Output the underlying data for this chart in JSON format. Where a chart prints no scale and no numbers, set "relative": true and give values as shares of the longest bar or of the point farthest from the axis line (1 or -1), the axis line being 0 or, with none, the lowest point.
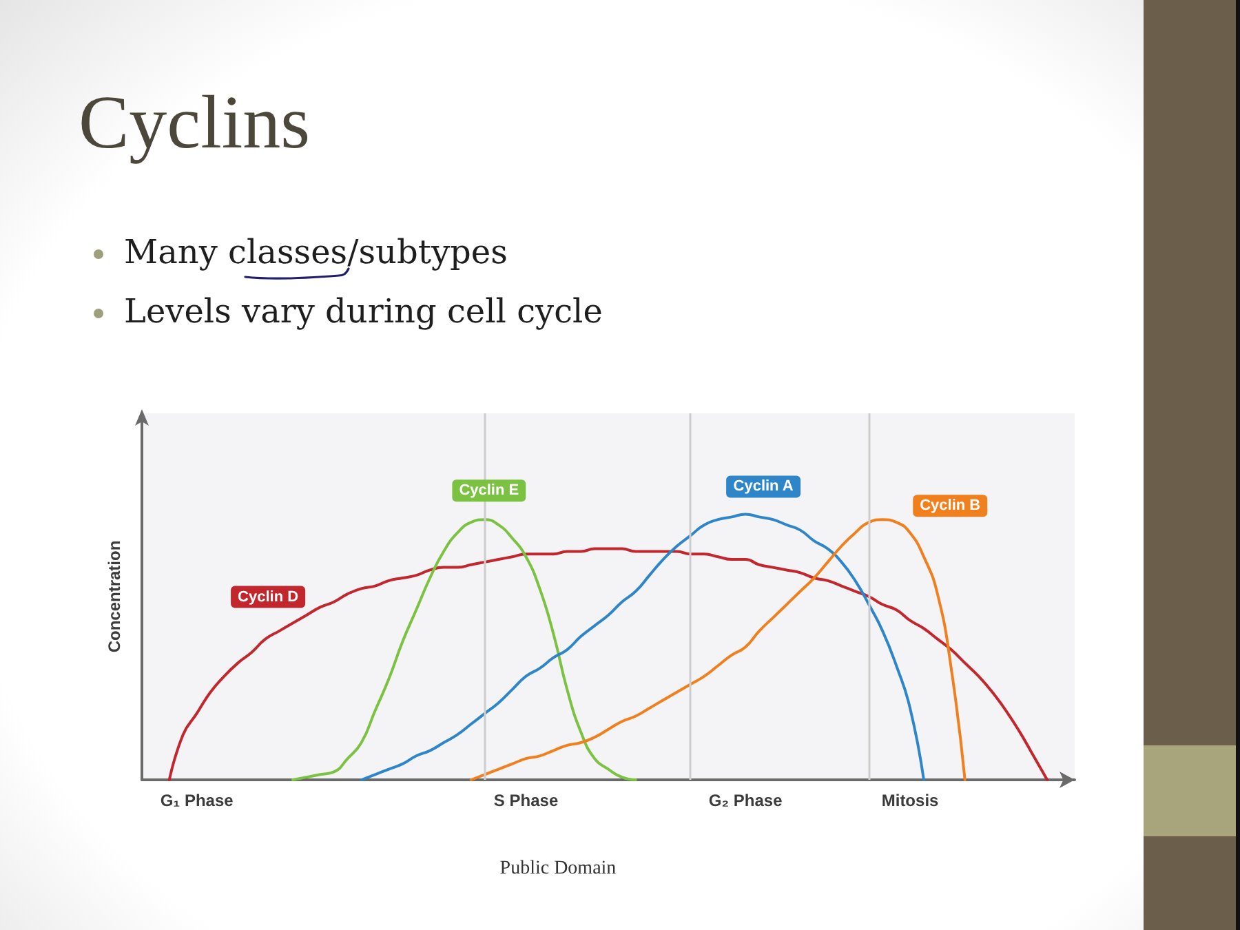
{
  "chart_data": {
    "type": "line",
    "title": "Cyclins",
    "ylabel": "Concentration",
    "annotations": [
      "Many classes/subtypes",
      "Levels vary during cell cycle",
      "Public Domain"
    ],
    "relative": true,
    "categories": [
      null,
      null,
      null,
      null,
      "G₁ Phase",
      null,
      null,
      null,
      null,
      null,
      null,
      null,
      null,
      null,
      null,
      null,
      null,
      null,
      null,
      null,
      null,
      null,
      null,
      null,
      null,
      null,
      null,
      null,
      "S Phase",
      null,
      null,
      null,
      null,
      null,
      null,
      null,
      null,
      null,
      null,
      null,
      null,
      null,
      null,
      null,
      "G₂ Phase",
      null,
      null,
      null,
      null,
      null,
      null,
      null,
      null,
      null,
      null,
      null,
      "Mitosis",
      null,
      null,
      null,
      null,
      null,
      null,
      null,
      null,
      null,
      null,
      null,
      null
    ],
    "marker": "none",
    "line_style": "solid",
    "series": [
      {
        "name": "Cyclin D",
        "color": "#c1272d",
        "values": [
          null,
          null,
          0,
          0.17,
          0.25,
          0.33,
          0.39,
          0.44,
          0.48,
          0.53,
          0.56,
          0.59,
          0.62,
          0.65,
          0.67,
          0.7,
          0.72,
          0.73,
          0.75,
          0.76,
          0.77,
          0.79,
          0.8,
          0.8,
          0.81,
          0.82,
          0.83,
          0.84,
          0.85,
          0.85,
          0.85,
          0.86,
          0.86,
          0.87,
          0.87,
          0.87,
          0.86,
          0.86,
          0.86,
          0.86,
          0.85,
          0.85,
          0.84,
          0.83,
          0.83,
          0.81,
          0.8,
          0.79,
          0.78,
          0.76,
          0.75,
          0.73,
          0.71,
          0.69,
          0.66,
          0.64,
          0.6,
          0.57,
          0.53,
          0.49,
          0.44,
          0.39,
          0.33,
          0.26,
          0.18,
          0.09,
          0,
          null,
          null
        ]
      },
      {
        "name": "Cyclin E",
        "color": "#7cc242",
        "values": [
          null,
          null,
          null,
          null,
          null,
          null,
          null,
          null,
          null,
          null,
          null,
          0,
          0.01,
          0.02,
          0.03,
          0.08,
          0.14,
          0.26,
          0.38,
          0.52,
          0.64,
          0.76,
          0.86,
          0.93,
          0.97,
          0.98,
          0.96,
          0.91,
          0.84,
          0.72,
          0.55,
          0.34,
          0.18,
          0.08,
          0.04,
          0.01,
          0,
          null,
          null,
          null,
          null,
          null,
          null,
          null,
          null,
          null,
          null,
          null,
          null,
          null,
          null,
          null,
          null,
          null,
          null,
          null,
          null,
          null,
          null,
          null,
          null,
          null,
          null,
          null,
          null,
          null,
          null,
          null,
          null
        ]
      },
      {
        "name": "Cyclin A",
        "color": "#2e86c8",
        "values": [
          null,
          null,
          null,
          null,
          null,
          null,
          null,
          null,
          null,
          null,
          null,
          null,
          null,
          null,
          null,
          null,
          0,
          0.02,
          0.04,
          0.06,
          0.09,
          0.11,
          0.14,
          0.17,
          0.21,
          0.25,
          0.29,
          0.34,
          0.39,
          0.42,
          0.46,
          0.49,
          0.54,
          0.58,
          0.62,
          0.67,
          0.71,
          0.77,
          0.83,
          0.88,
          0.92,
          0.96,
          0.98,
          0.99,
          1,
          0.99,
          0.98,
          0.96,
          0.94,
          0.9,
          0.87,
          0.82,
          0.75,
          0.66,
          0.56,
          0.43,
          0.27,
          0,
          null,
          null,
          null,
          null,
          null,
          null,
          null,
          null,
          null,
          null,
          null
        ]
      },
      {
        "name": "Cyclin B",
        "color": "#f07f1e",
        "values": [
          null,
          null,
          null,
          null,
          null,
          null,
          null,
          null,
          null,
          null,
          null,
          null,
          null,
          null,
          null,
          null,
          null,
          null,
          null,
          null,
          null,
          null,
          null,
          null,
          0,
          0.02,
          0.04,
          0.06,
          0.08,
          0.09,
          0.11,
          0.13,
          0.14,
          0.16,
          0.19,
          0.22,
          0.24,
          0.27,
          0.3,
          0.33,
          0.36,
          0.39,
          0.43,
          0.47,
          0.5,
          0.56,
          0.61,
          0.66,
          0.71,
          0.76,
          0.82,
          0.88,
          0.93,
          0.97,
          0.98,
          0.97,
          0.93,
          0.84,
          0.7,
          0.42,
          0,
          null,
          null,
          null,
          null,
          null,
          null,
          null,
          null
        ]
      }
    ]
  }
}
